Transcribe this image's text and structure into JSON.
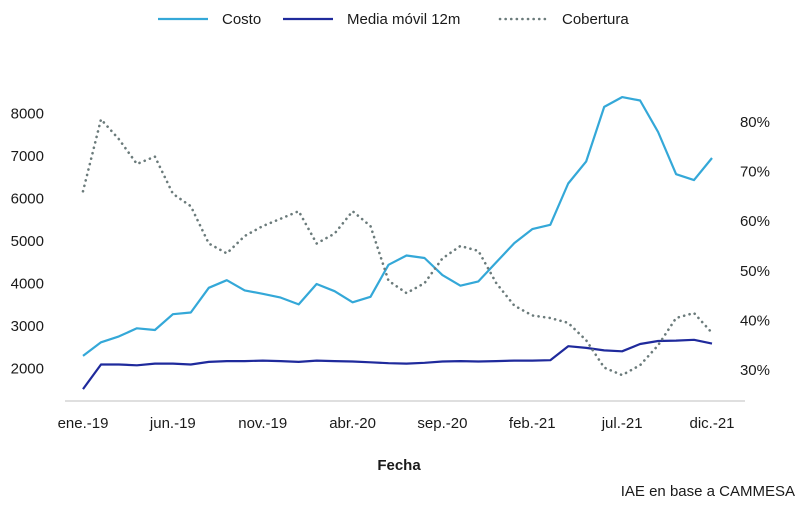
{
  "chart_data": {
    "type": "line",
    "xlabel": "Fecha",
    "source": "IAE en base a CAMMESA",
    "x_tick_labels": [
      "ene.-19",
      "jun.-19",
      "nov.-19",
      "abr.-20",
      "sep.-20",
      "feb.-21",
      "jul.-21",
      "dic.-21"
    ],
    "x_tick_indices": [
      0,
      5,
      10,
      15,
      20,
      25,
      30,
      35
    ],
    "y_left": {
      "ylim": [
        1500,
        8500
      ],
      "ticks": [
        2000,
        3000,
        4000,
        5000,
        6000,
        7000,
        8000
      ]
    },
    "y_right": {
      "ylim": [
        0.26,
        0.86
      ],
      "ticks": [
        0.3,
        0.4,
        0.5,
        0.6,
        0.7,
        0.8
      ],
      "tick_labels": [
        "30%",
        "40%",
        "50%",
        "60%",
        "70%",
        "80%"
      ]
    },
    "colors": {
      "costo": "#34a8d8",
      "media": "#1f2a9c",
      "cobertura": "#6b7b7b"
    },
    "series": [
      {
        "name": "Costo",
        "axis": "left",
        "style": "solid",
        "values": [
          2300,
          2620,
          2760,
          2950,
          2910,
          3280,
          3320,
          3900,
          4080,
          3840,
          3760,
          3670,
          3510,
          3990,
          3820,
          3560,
          3690,
          4440,
          4660,
          4600,
          4200,
          3950,
          4050,
          4500,
          4950,
          5280,
          5380,
          6350,
          6870,
          8150,
          8380,
          8300,
          7560,
          6570,
          6430,
          6950
        ]
      },
      {
        "name": "Media móvil 12m",
        "axis": "left",
        "style": "solid",
        "values": [
          1520,
          2100,
          2100,
          2080,
          2120,
          2120,
          2100,
          2160,
          2180,
          2180,
          2190,
          2180,
          2160,
          2190,
          2180,
          2170,
          2150,
          2130,
          2120,
          2140,
          2170,
          2180,
          2170,
          2180,
          2190,
          2190,
          2200,
          2530,
          2490,
          2430,
          2410,
          2580,
          2650,
          2660,
          2680,
          2590
        ]
      },
      {
        "name": "Cobertura",
        "axis": "right",
        "style": "dotted",
        "values": [
          0.66,
          0.805,
          0.765,
          0.715,
          0.73,
          0.655,
          0.63,
          0.555,
          0.535,
          0.57,
          0.59,
          0.605,
          0.62,
          0.555,
          0.575,
          0.62,
          0.59,
          0.48,
          0.455,
          0.475,
          0.525,
          0.55,
          0.54,
          0.475,
          0.43,
          0.41,
          0.405,
          0.395,
          0.36,
          0.305,
          0.29,
          0.31,
          0.35,
          0.405,
          0.415,
          0.375
        ]
      }
    ]
  }
}
